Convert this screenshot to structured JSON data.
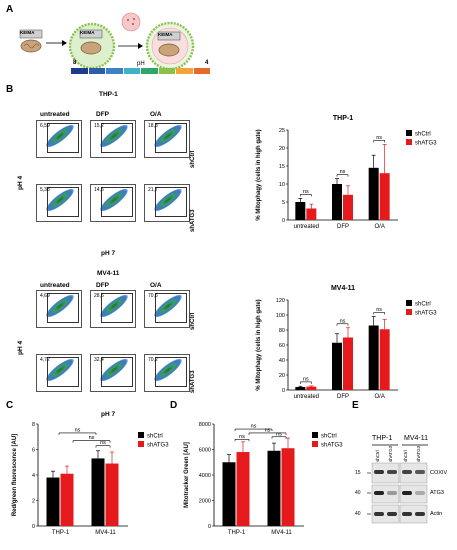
{
  "panelA": {
    "letter": "A",
    "keima": "KEIMA",
    "ph_label": "pH",
    "ph_low": "8",
    "ph_high": "4",
    "scale_colors": [
      "#1f3b8c",
      "#2d5fa8",
      "#3b82c4",
      "#3fb1c8",
      "#2fa66a",
      "#8cc04b",
      "#f2a33a",
      "#e56a2b"
    ]
  },
  "panelB": {
    "letter": "B",
    "thp1_title": "THP-1",
    "mv411_title": "MV4-11",
    "col_labels": [
      "untreated",
      "DFP",
      "O/A"
    ],
    "row_labels": [
      "shCtrl",
      "shATG3"
    ],
    "x_axis": "pH 7",
    "y_axis": "pH 4",
    "thp1_gates": [
      [
        "6,59",
        "15,2",
        "18,3"
      ],
      [
        "5,38",
        "14,5",
        "21,7"
      ]
    ],
    "mv411_gates": [
      [
        "4,69",
        "28,6",
        "70,6"
      ],
      [
        "4,72",
        "32,4",
        "70,2"
      ]
    ]
  },
  "panelC": {
    "letter": "C"
  },
  "panelD": {
    "letter": "D"
  },
  "panelE": {
    "letter": "E",
    "cell_lines": [
      "THP-1",
      "MV4-11"
    ],
    "lanes": [
      "shCtrl",
      "shATG3",
      "shCtrl",
      "shATG3"
    ],
    "proteins": [
      "COXIV",
      "ATG3",
      "Actin"
    ],
    "markers": [
      "15",
      "40",
      "40"
    ]
  },
  "chart_data": [
    {
      "type": "bar",
      "title": "THP-1",
      "ylabel": "% Mitophagy (cells in high gate)",
      "categories": [
        "untreated",
        "DFP",
        "O/A"
      ],
      "ylim": [
        0,
        25
      ],
      "yticks": [
        "0",
        "5",
        "10",
        "15",
        "20",
        "25"
      ],
      "series": [
        {
          "name": "shCtrl",
          "color": "#000000",
          "values": [
            5,
            10,
            14.5
          ],
          "errors": [
            1,
            1.5,
            3.5
          ]
        },
        {
          "name": "shATG3",
          "color": "#e41a1c",
          "values": [
            3.2,
            7,
            13
          ],
          "errors": [
            1.2,
            2.5,
            8
          ]
        }
      ],
      "annotations": [
        "ns",
        "ns",
        "ns"
      ]
    },
    {
      "type": "bar",
      "title": "MV4-11",
      "ylabel": "% Mitophagy (cells in high gate)",
      "categories": [
        "untreated",
        "DFP",
        "O/A"
      ],
      "ylim": [
        0,
        120
      ],
      "yticks": [
        "0",
        "20",
        "40",
        "60",
        "80",
        "100",
        "120"
      ],
      "series": [
        {
          "name": "shCtrl",
          "color": "#000000",
          "values": [
            4,
            63,
            86
          ],
          "errors": [
            1,
            12,
            12
          ]
        },
        {
          "name": "shATG3",
          "color": "#e41a1c",
          "values": [
            4.5,
            70,
            81
          ],
          "errors": [
            1,
            13,
            13
          ]
        }
      ],
      "annotations": [
        "ns",
        "ns",
        "ns"
      ]
    },
    {
      "type": "bar",
      "ylabel": "Red/green fluorescence [AU]",
      "categories": [
        "THP-1",
        "MV4-11"
      ],
      "ylim": [
        0,
        8
      ],
      "yticks": [
        "0",
        "2",
        "4",
        "6",
        "8"
      ],
      "series": [
        {
          "name": "shCtrl",
          "color": "#000000",
          "values": [
            3.8,
            5.3
          ],
          "errors": [
            0.5,
            0.6
          ]
        },
        {
          "name": "shATG3",
          "color": "#e41a1c",
          "values": [
            4.1,
            4.9
          ],
          "errors": [
            0.6,
            0.9
          ]
        }
      ],
      "annotations": [
        "ns",
        "ns",
        "ns"
      ]
    },
    {
      "type": "bar",
      "ylabel": "Mitotracker Green [AU]",
      "categories": [
        "THP-1",
        "MV4-11"
      ],
      "ylim": [
        0,
        8000
      ],
      "yticks": [
        "0",
        "2000",
        "4000",
        "6000",
        "8000"
      ],
      "series": [
        {
          "name": "shCtrl",
          "color": "#000000",
          "values": [
            5000,
            5900
          ],
          "errors": [
            600,
            600
          ]
        },
        {
          "name": "shATG3",
          "color": "#e41a1c",
          "values": [
            5800,
            6100
          ],
          "errors": [
            800,
            800
          ]
        }
      ],
      "annotations": [
        "ns",
        "ns",
        "ns",
        "ns"
      ]
    }
  ]
}
